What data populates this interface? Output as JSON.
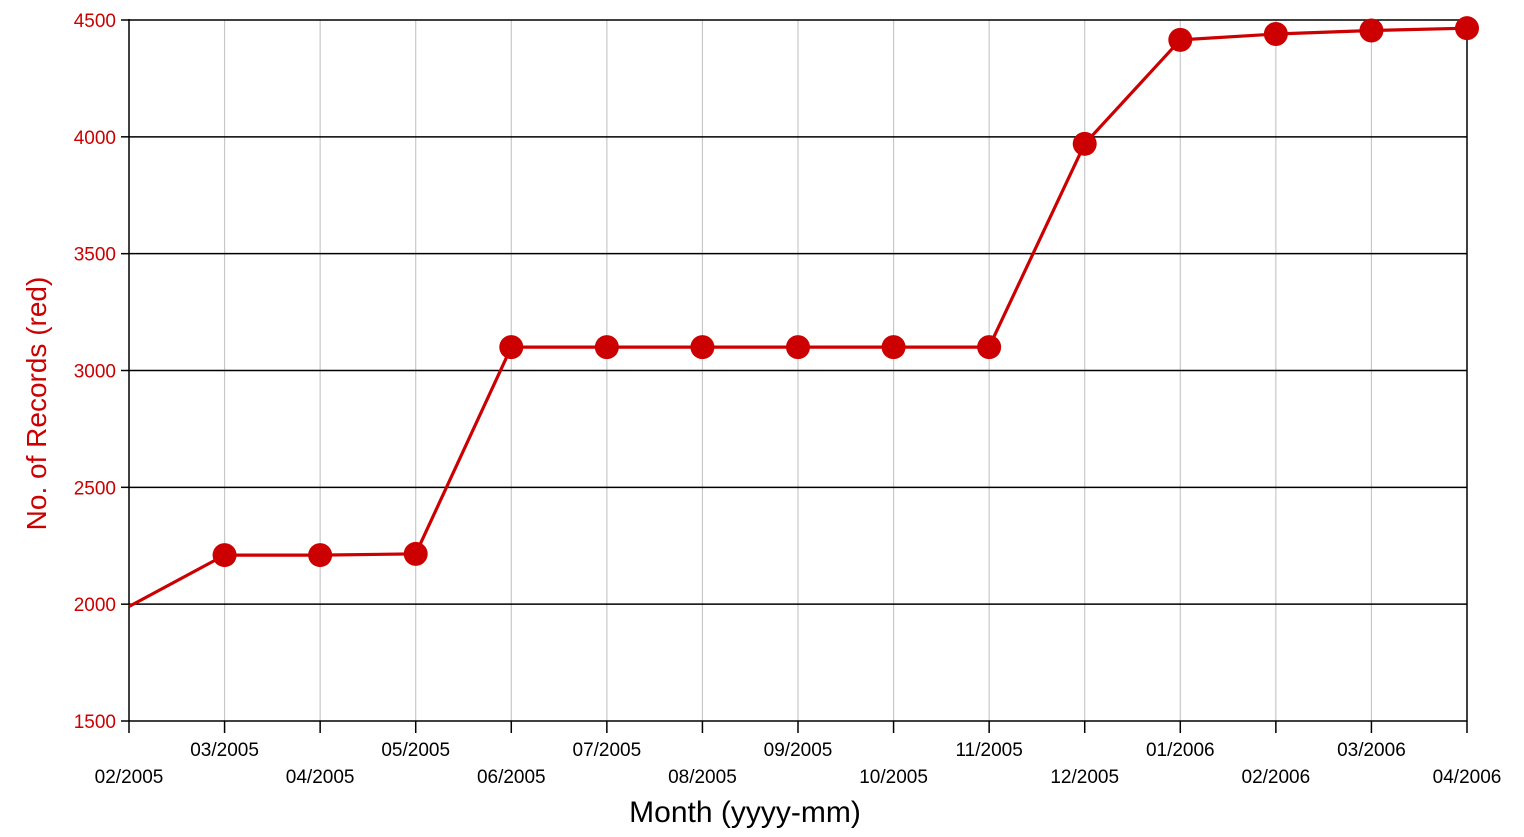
{
  "chart_data": {
    "type": "line",
    "title": "",
    "xlabel": "Month (yyyy-mm)",
    "ylabel": "No. of Records (red)",
    "ylim": [
      1500,
      4500
    ],
    "yticks": [
      1500,
      2000,
      2500,
      3000,
      3500,
      4000,
      4500
    ],
    "ytick_labels": [
      "1500",
      "2000",
      "2500",
      "3000",
      "3500",
      "4000",
      "4500"
    ],
    "categories": [
      "02/2005",
      "03/2005",
      "04/2005",
      "05/2005",
      "06/2005",
      "07/2005",
      "08/2005",
      "09/2005",
      "10/2005",
      "11/2005",
      "12/2005",
      "01/2006",
      "02/2006",
      "03/2006",
      "04/2006"
    ],
    "series": [
      {
        "values": [
          1990,
          2210,
          2210,
          2215,
          3100,
          3100,
          3100,
          3100,
          3100,
          3100,
          3970,
          4415,
          4440,
          4455,
          4465
        ],
        "markers": [
          false,
          true,
          true,
          true,
          true,
          true,
          true,
          true,
          true,
          true,
          true,
          true,
          true,
          true,
          true
        ],
        "color": "#cc0000"
      }
    ],
    "grid": {
      "horizontal": true,
      "horizontal_color": "#000000",
      "vertical": true,
      "vertical_color": "#c8c8c8"
    },
    "axis_color": "#000000",
    "ylabel_color": "#cc0000",
    "legend": "none"
  }
}
